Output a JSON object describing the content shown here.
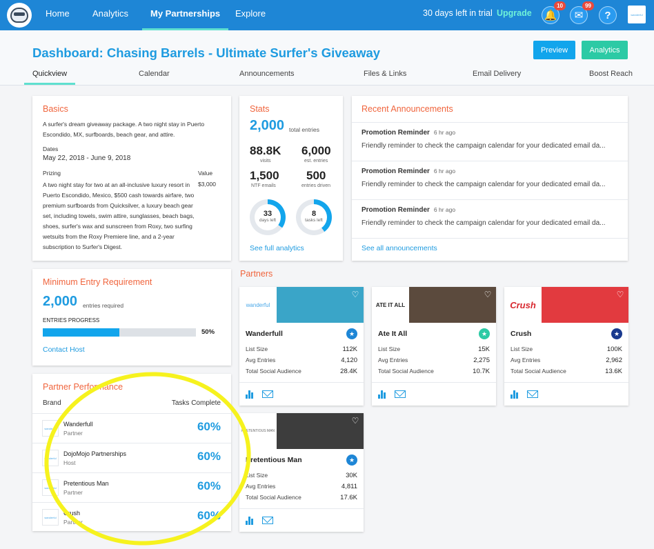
{
  "nav": {
    "links": [
      "Home",
      "Analytics",
      "My Partnerships",
      "Explore"
    ],
    "trial_text": "30 days left in trial",
    "upgrade_label": "Upgrade",
    "notifications_count": "10",
    "messages_count": "99",
    "help_icon": "?",
    "account_logo_text": "wanderful"
  },
  "header": {
    "title": "Dashboard: Chasing Barrels - Ultimate Surfer's Giveaway",
    "preview_label": "Preview",
    "analytics_label": "Analytics",
    "tabs": [
      "Quickview",
      "Calendar",
      "Announcements",
      "Files & Links",
      "Email Delivery",
      "Boost Reach"
    ]
  },
  "basics": {
    "title": "Basics",
    "description": "A surfer's dream giveaway package. A two night stay in Puerto Escondido, MX, surfboards, beach gear, and attire.",
    "dates_label": "Dates",
    "dates_value": "May 22, 2018 - June 9, 2018",
    "prizing_label": "Prizing",
    "value_label": "Value",
    "prizing_text": "A two night stay for two at an all-inclusive luxury resort in Puerto Escondido, Mexico, $500 cash towards airfare, two premium surfboards from Quicksilver, a luxury beach gear set, including towels, swim attire, sunglasses, beach bags, shoes, surfer's wax and sunscreen from Roxy, two surfing wetsuits from the Roxy Premiere line, and a 2-year subscription to Surfer's Digest.",
    "value_amount": "$3,000"
  },
  "stats": {
    "title": "Stats",
    "total_entries": "2,000",
    "total_entries_label": "total entries",
    "visits": "88.8K",
    "visits_label": "visits",
    "est_entries": "6,000",
    "est_entries_label": "est. entries",
    "ntf_emails": "1,500",
    "ntf_emails_label": "NTF emails",
    "entries_driven": "500",
    "entries_driven_label": "entries driven",
    "days_left": "33",
    "days_left_label": "days left",
    "days_left_fraction": 0.35,
    "tasks_left": "8",
    "tasks_left_label": "tasks left",
    "tasks_left_fraction": 0.4,
    "link": "See full analytics"
  },
  "announcements": {
    "title": "Recent Announcements",
    "items": [
      {
        "title": "Promotion Reminder",
        "time": "6 hr ago",
        "body": "Friendly reminder to check the campaign calendar for your dedicated email da..."
      },
      {
        "title": "Promotion Reminder",
        "time": "6 hr ago",
        "body": "Friendly reminder to check the campaign calendar for your dedicated email da..."
      },
      {
        "title": "Promotion Reminder",
        "time": "6 hr ago",
        "body": "Friendly reminder to check the campaign calendar for your dedicated email da..."
      }
    ],
    "link": "See all announcements"
  },
  "min_entry": {
    "title": "Minimum Entry Requirement",
    "entries": "2,000",
    "entries_label": "entries required",
    "progress_label": "ENTRIES PROGRESS",
    "progress_percent": 50,
    "progress_text": "50%",
    "link": "Contact Host"
  },
  "partner_performance": {
    "title": "Partner Performance",
    "col_brand": "Brand",
    "col_tasks": "Tasks Complete",
    "rows": [
      {
        "name": "Wanderfull",
        "role": "Partner",
        "pct": "60%",
        "logo": "wanderful"
      },
      {
        "name": "DojoMojo Partnerships",
        "role": "Host",
        "pct": "60%",
        "logo": "wanderful"
      },
      {
        "name": "Pretentious Man",
        "role": "Partner",
        "pct": "60%",
        "logo": "wanderful"
      },
      {
        "name": "Crush",
        "role": "Partner",
        "pct": "60%",
        "logo": "wanderful"
      }
    ]
  },
  "partners": {
    "title": "Partners",
    "list_size_label": "List Size",
    "avg_entries_label": "Avg Entries",
    "social_label": "Total Social Audience",
    "tiles": [
      {
        "name": "Wanderfull",
        "logo_text": "wanderful",
        "list_size": "112K",
        "avg_entries": "4,120",
        "social": "28.4K",
        "badge_color": "#1e86d6",
        "banner_color": "#3aa5c8"
      },
      {
        "name": "Ate It All",
        "logo_text": "ATE IT ALL",
        "list_size": "15K",
        "avg_entries": "2,275",
        "social": "10.7K",
        "badge_color": "#2ccaa5",
        "banner_color": "#5b4a3d"
      },
      {
        "name": "Crush",
        "logo_text": "Crush",
        "list_size": "100K",
        "avg_entries": "2,962",
        "social": "13.6K",
        "badge_color": "#1a3a8f",
        "banner_color": "#e23a3f"
      },
      {
        "name": "Pretentious Man",
        "logo_text": "PRETENTIOUS MAN",
        "list_size": "30K",
        "avg_entries": "4,811",
        "social": "17.6K",
        "badge_color": "#1e86d6",
        "banner_color": "#3d3d3d"
      }
    ]
  }
}
